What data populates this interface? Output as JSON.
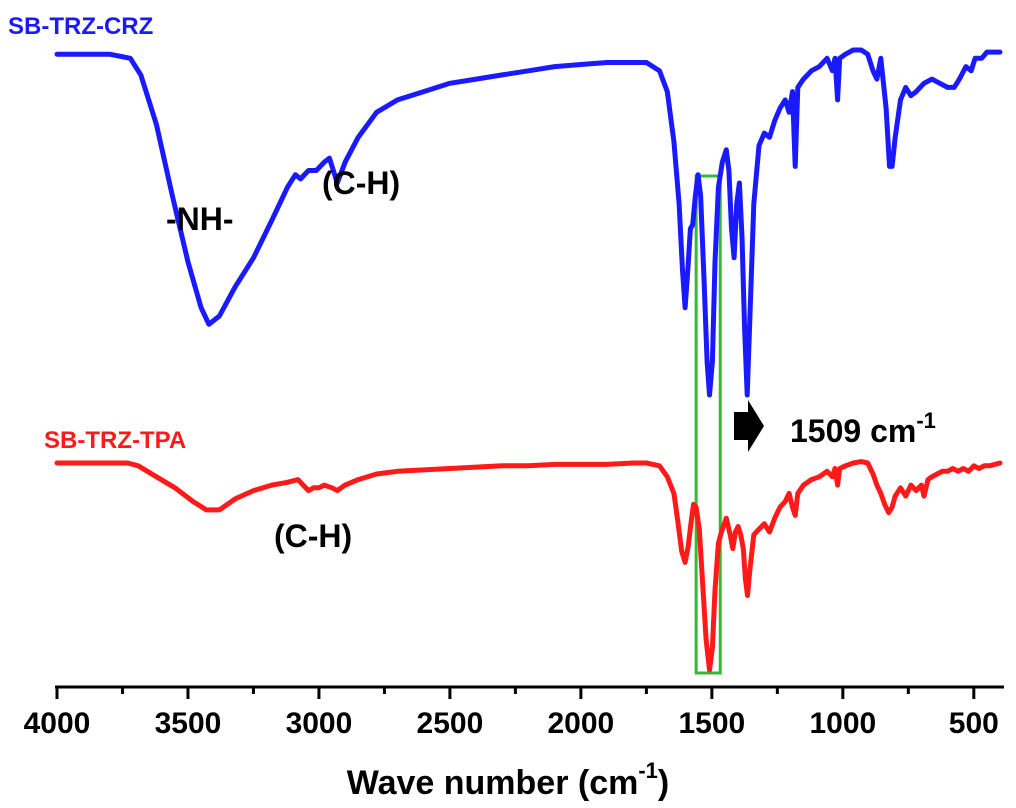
{
  "chart_data": {
    "type": "line",
    "title": "",
    "xlabel": "Wave number (cm",
    "xlabel_sup": "-1",
    "xlabel_end": ")",
    "ylabel": "",
    "xlim": [
      4000,
      400
    ],
    "x_reversed": true,
    "y_axis_shown": false,
    "grid": false,
    "x_ticks": [
      {
        "value": 4000,
        "label": "4000"
      },
      {
        "value": 3500,
        "label": "3500"
      },
      {
        "value": 3000,
        "label": "3000"
      },
      {
        "value": 2500,
        "label": "2500"
      },
      {
        "value": 2000,
        "label": "2000"
      },
      {
        "value": 1500,
        "label": "1500"
      },
      {
        "value": 1000,
        "label": "1000"
      },
      {
        "value": 500,
        "label": "500"
      }
    ],
    "series": [
      {
        "name": "SB-TRZ-CRZ",
        "color": "#1a1aff",
        "points": [
          [
            4000,
            94
          ],
          [
            3800,
            94
          ],
          [
            3720,
            93
          ],
          [
            3680,
            89
          ],
          [
            3620,
            77
          ],
          [
            3560,
            60
          ],
          [
            3500,
            44
          ],
          [
            3450,
            33
          ],
          [
            3420,
            29
          ],
          [
            3380,
            31
          ],
          [
            3320,
            38
          ],
          [
            3250,
            45
          ],
          [
            3180,
            54
          ],
          [
            3120,
            62
          ],
          [
            3090,
            65
          ],
          [
            3070,
            64
          ],
          [
            3040,
            66
          ],
          [
            3010,
            66
          ],
          [
            2980,
            68
          ],
          [
            2960,
            69
          ],
          [
            2930,
            63
          ],
          [
            2900,
            68
          ],
          [
            2850,
            74
          ],
          [
            2780,
            80
          ],
          [
            2700,
            83
          ],
          [
            2600,
            85
          ],
          [
            2500,
            87
          ],
          [
            2400,
            88
          ],
          [
            2300,
            89
          ],
          [
            2200,
            90
          ],
          [
            2100,
            91
          ],
          [
            2000,
            91.5
          ],
          [
            1900,
            92
          ],
          [
            1800,
            92
          ],
          [
            1750,
            92
          ],
          [
            1700,
            90
          ],
          [
            1670,
            85
          ],
          [
            1645,
            73
          ],
          [
            1625,
            58
          ],
          [
            1612,
            42
          ],
          [
            1602,
            33
          ],
          [
            1592,
            42
          ],
          [
            1582,
            52
          ],
          [
            1573,
            53
          ],
          [
            1563,
            60
          ],
          [
            1553,
            65
          ],
          [
            1543,
            60
          ],
          [
            1530,
            40
          ],
          [
            1518,
            20
          ],
          [
            1509,
            12
          ],
          [
            1498,
            20
          ],
          [
            1488,
            44
          ],
          [
            1475,
            62
          ],
          [
            1460,
            68
          ],
          [
            1445,
            71
          ],
          [
            1435,
            66
          ],
          [
            1425,
            52
          ],
          [
            1415,
            45
          ],
          [
            1405,
            58
          ],
          [
            1395,
            63
          ],
          [
            1385,
            50
          ],
          [
            1375,
            28
          ],
          [
            1365,
            12
          ],
          [
            1355,
            30
          ],
          [
            1340,
            58
          ],
          [
            1320,
            72
          ],
          [
            1300,
            75
          ],
          [
            1280,
            74
          ],
          [
            1260,
            78
          ],
          [
            1240,
            81
          ],
          [
            1220,
            83
          ],
          [
            1205,
            80
          ],
          [
            1192,
            85
          ],
          [
            1182,
            67
          ],
          [
            1172,
            86
          ],
          [
            1150,
            88
          ],
          [
            1120,
            90
          ],
          [
            1090,
            91
          ],
          [
            1060,
            93
          ],
          [
            1040,
            90
          ],
          [
            1030,
            93
          ],
          [
            1020,
            83
          ],
          [
            1012,
            93
          ],
          [
            990,
            94
          ],
          [
            960,
            95
          ],
          [
            930,
            95
          ],
          [
            905,
            94
          ],
          [
            885,
            90
          ],
          [
            870,
            88
          ],
          [
            855,
            93
          ],
          [
            835,
            81
          ],
          [
            822,
            67
          ],
          [
            812,
            67
          ],
          [
            800,
            74
          ],
          [
            780,
            83
          ],
          [
            760,
            86
          ],
          [
            740,
            84
          ],
          [
            720,
            85
          ],
          [
            690,
            87
          ],
          [
            660,
            88
          ],
          [
            630,
            87
          ],
          [
            600,
            86
          ],
          [
            575,
            86
          ],
          [
            555,
            88
          ],
          [
            530,
            91
          ],
          [
            510,
            90
          ],
          [
            495,
            93
          ],
          [
            470,
            93
          ],
          [
            450,
            94.5
          ],
          [
            400,
            94.5
          ]
        ]
      },
      {
        "name": "SB-TRZ-TPA",
        "color": "#ff1a1a",
        "points": [
          [
            4000,
            94
          ],
          [
            3850,
            94
          ],
          [
            3730,
            94
          ],
          [
            3690,
            93
          ],
          [
            3620,
            89
          ],
          [
            3550,
            85
          ],
          [
            3480,
            80
          ],
          [
            3430,
            77
          ],
          [
            3380,
            77
          ],
          [
            3320,
            81
          ],
          [
            3250,
            84
          ],
          [
            3180,
            86
          ],
          [
            3120,
            87
          ],
          [
            3080,
            88
          ],
          [
            3060,
            86
          ],
          [
            3040,
            84
          ],
          [
            3020,
            85
          ],
          [
            3000,
            85
          ],
          [
            2980,
            86
          ],
          [
            2950,
            85
          ],
          [
            2930,
            84
          ],
          [
            2900,
            86
          ],
          [
            2850,
            88
          ],
          [
            2780,
            90
          ],
          [
            2700,
            91
          ],
          [
            2600,
            91.5
          ],
          [
            2500,
            92
          ],
          [
            2400,
            92.5
          ],
          [
            2300,
            93
          ],
          [
            2200,
            93
          ],
          [
            2100,
            93.5
          ],
          [
            2000,
            93.5
          ],
          [
            1900,
            93.5
          ],
          [
            1800,
            94
          ],
          [
            1750,
            94
          ],
          [
            1700,
            93
          ],
          [
            1670,
            89
          ],
          [
            1645,
            83
          ],
          [
            1630,
            73
          ],
          [
            1615,
            62
          ],
          [
            1602,
            58
          ],
          [
            1590,
            64
          ],
          [
            1580,
            72
          ],
          [
            1570,
            79
          ],
          [
            1560,
            78
          ],
          [
            1548,
            70
          ],
          [
            1535,
            50
          ],
          [
            1522,
            30
          ],
          [
            1509,
            19
          ],
          [
            1498,
            27
          ],
          [
            1488,
            48
          ],
          [
            1475,
            65
          ],
          [
            1460,
            70
          ],
          [
            1445,
            74
          ],
          [
            1430,
            68
          ],
          [
            1420,
            63
          ],
          [
            1410,
            69
          ],
          [
            1400,
            71
          ],
          [
            1390,
            68
          ],
          [
            1380,
            63
          ],
          [
            1372,
            52
          ],
          [
            1364,
            46
          ],
          [
            1355,
            55
          ],
          [
            1340,
            68
          ],
          [
            1320,
            70
          ],
          [
            1300,
            72
          ],
          [
            1280,
            69
          ],
          [
            1260,
            74
          ],
          [
            1240,
            78
          ],
          [
            1220,
            80
          ],
          [
            1205,
            83
          ],
          [
            1192,
            78
          ],
          [
            1182,
            75
          ],
          [
            1172,
            83
          ],
          [
            1150,
            86
          ],
          [
            1120,
            88
          ],
          [
            1090,
            89
          ],
          [
            1060,
            91
          ],
          [
            1040,
            89
          ],
          [
            1030,
            92
          ],
          [
            1020,
            86
          ],
          [
            1012,
            92
          ],
          [
            990,
            93
          ],
          [
            960,
            94
          ],
          [
            930,
            94.5
          ],
          [
            905,
            94
          ],
          [
            885,
            90
          ],
          [
            870,
            86
          ],
          [
            855,
            83
          ],
          [
            840,
            79
          ],
          [
            825,
            76
          ],
          [
            812,
            78
          ],
          [
            800,
            82
          ],
          [
            780,
            85
          ],
          [
            760,
            82
          ],
          [
            740,
            86
          ],
          [
            720,
            84
          ],
          [
            700,
            86
          ],
          [
            690,
            82
          ],
          [
            675,
            88
          ],
          [
            660,
            89
          ],
          [
            640,
            90
          ],
          [
            620,
            91
          ],
          [
            600,
            91
          ],
          [
            580,
            92
          ],
          [
            560,
            91
          ],
          [
            540,
            92
          ],
          [
            520,
            91
          ],
          [
            500,
            93
          ],
          [
            480,
            92
          ],
          [
            460,
            93
          ],
          [
            440,
            93
          ],
          [
            400,
            94
          ]
        ]
      }
    ],
    "annotations": [
      {
        "text": "-NH-"
      },
      {
        "text": "(C-H)"
      },
      {
        "text": "(C-H)"
      },
      {
        "text": "1509 cm",
        "sup": "-1"
      }
    ],
    "highlight": {
      "x_from": 1560,
      "x_to": 1468,
      "color": "#33bb33"
    }
  }
}
